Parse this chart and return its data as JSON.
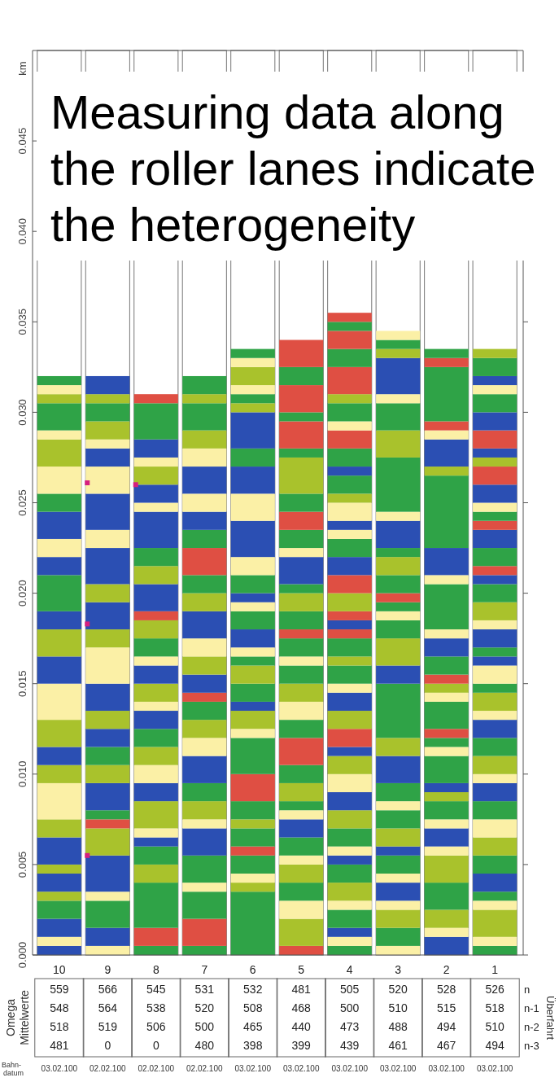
{
  "chart_data": {
    "type": "bar",
    "stacked": true,
    "title": "Measuring data along the roller lanes indicate the heterogeneity",
    "ylabel": "km",
    "categories": [
      "10",
      "9",
      "8",
      "7",
      "6",
      "5",
      "4",
      "3",
      "2",
      "1"
    ],
    "ylim": [
      0,
      0.05
    ],
    "yticks": [
      {
        "value": 0,
        "label": "0.000"
      },
      {
        "value": 0.005,
        "label": "0.005"
      },
      {
        "value": 0.01,
        "label": "0.010"
      },
      {
        "value": 0.015,
        "label": "0.015"
      },
      {
        "value": 0.02,
        "label": "0.020"
      },
      {
        "value": 0.025,
        "label": "0.025"
      },
      {
        "value": 0.03,
        "label": "0.030"
      },
      {
        "value": 0.035,
        "label": "0.035"
      },
      {
        "value": 0.04,
        "label": "0.040"
      },
      {
        "value": 0.045,
        "label": "0.045"
      }
    ],
    "marker": "square",
    "series": [
      {
        "values": [
          0.0005,
          0.0005,
          0.0005,
          0.0005,
          0.0035,
          0.0005,
          0.0005,
          0.0005,
          0.001,
          0.0005
        ],
        "colors": [
          "#2b4fb3",
          "#fbf0a6",
          "#2fa347",
          "#2fa347",
          "#2fa347",
          "#df4f43",
          "#2fa347",
          "#fbf0a6",
          "#2b4fb3",
          "#2fa347"
        ]
      },
      {
        "values": [
          0.0005,
          0.001,
          0.001,
          0.0015,
          0.0005,
          0.0015,
          0.0005,
          0.001,
          0.0005,
          0.0005
        ],
        "colors": [
          "#fbf0a6",
          "#2b4fb3",
          "#df4f43",
          "#df4f43",
          "#a9c22c",
          "#a9c22c",
          "#fbf0a6",
          "#2fa347",
          "#fbf0a6",
          "#fbf0a6"
        ]
      },
      {
        "values": [
          0.001,
          0.0015,
          0.0025,
          0.0015,
          0.0005,
          0.001,
          0.0005,
          0.001,
          0.001,
          0.0015
        ],
        "colors": [
          "#2b4fb3",
          "#2fa347",
          "#2fa347",
          "#2fa347",
          "#fbf0a6",
          "#fbf0a6",
          "#2b4fb3",
          "#a9c22c",
          "#a9c22c",
          "#a9c22c"
        ]
      },
      {
        "values": [
          0.001,
          0.0005,
          0.001,
          0.0005,
          0.001,
          0.001,
          0.001,
          0.0005,
          0.0015,
          0.0005
        ],
        "colors": [
          "#2fa347",
          "#fbf0a6",
          "#a9c22c",
          "#fbf0a6",
          "#2fa347",
          "#2fa347",
          "#2fa347",
          "#fbf0a6",
          "#2fa347",
          "#fbf0a6"
        ]
      },
      {
        "values": [
          0.0005,
          0.002,
          0.001,
          0.0015,
          0.0005,
          0.001,
          0.0005,
          0.001,
          0.0015,
          0.0005
        ],
        "colors": [
          "#a9c22c",
          "#2b4fb3",
          "#2fa347",
          "#2fa347",
          "#df4f43",
          "#a9c22c",
          "#fbf0a6",
          "#2b4fb3",
          "#a9c22c",
          "#2fa347"
        ]
      },
      {
        "values": [
          0.001,
          0.0015,
          0.0005,
          0.0015,
          0.001,
          0.0005,
          0.001,
          0.0005,
          0.0005,
          0.001
        ],
        "colors": [
          "#2b4fb3",
          "#a9c22c",
          "#2b4fb3",
          "#2b4fb3",
          "#2fa347",
          "#fbf0a6",
          "#a9c22c",
          "#fbf0a6",
          "#fbf0a6",
          "#2b4fb3"
        ]
      },
      {
        "values": [
          0.0005,
          0.0005,
          0.0005,
          0.0005,
          0.0005,
          0.001,
          0.001,
          0.001,
          0.001,
          0.001
        ],
        "colors": [
          "#a9c22c",
          "#df4f43",
          "#fbf0a6",
          "#fbf0a6",
          "#a9c22c",
          "#2fa347",
          "#2fa347",
          "#2fa347",
          "#2b4fb3",
          "#2fa347"
        ]
      },
      {
        "values": [
          0.0015,
          0.0005,
          0.0015,
          0.001,
          0.001,
          0.001,
          0.0005,
          0.0005,
          0.0005,
          0.001
        ],
        "colors": [
          "#2b4fb3",
          "#2fa347",
          "#a9c22c",
          "#a9c22c",
          "#2fa347",
          "#2b4fb3",
          "#2b4fb3",
          "#2b4fb3",
          "#fbf0a6",
          "#a9c22c"
        ]
      },
      {
        "values": [
          0.001,
          0.0015,
          0.001,
          0.001,
          0.0015,
          0.0005,
          0.0005,
          0.001,
          0.001,
          0.001
        ],
        "colors": [
          "#a9c22c",
          "#2b4fb3",
          "#2b4fb3",
          "#2fa347",
          "#df4f43",
          "#fbf0a6",
          "#fbf0a6",
          "#a9c22c",
          "#2fa347",
          "#fbf0a6"
        ]
      },
      {
        "values": [
          0.002,
          0.001,
          0.001,
          0.0015,
          0.002,
          0.0005,
          0.001,
          0.001,
          0.0005,
          0.001
        ],
        "colors": [
          "#fbf0a6",
          "#a9c22c",
          "#fbf0a6",
          "#2b4fb3",
          "#2fa347",
          "#2fa347",
          "#2fa347",
          "#2fa347",
          "#a9c22c",
          "#2fa347"
        ]
      },
      {
        "values": [
          0.001,
          0.001,
          0.001,
          0.001,
          0.0005,
          0.001,
          0.001,
          0.0005,
          0.0005,
          0.001
        ],
        "colors": [
          "#a9c22c",
          "#2fa347",
          "#a9c22c",
          "#fbf0a6",
          "#fbf0a6",
          "#a9c22c",
          "#a9c22c",
          "#fbf0a6",
          "#2b4fb3",
          "#2b4fb3"
        ]
      },
      {
        "values": [
          0.001,
          0.001,
          0.001,
          0.001,
          0.001,
          0.001,
          0.001,
          0.001,
          0.0015,
          0.0005
        ],
        "colors": [
          "#2b4fb3",
          "#2b4fb3",
          "#2fa347",
          "#a9c22c",
          "#a9c22c",
          "#2fa347",
          "#2b4fb3",
          "#2fa347",
          "#2fa347",
          "#fbf0a6"
        ]
      },
      {
        "values": [
          0.0015,
          0.001,
          0.001,
          0.001,
          0.0005,
          0.0015,
          0.001,
          0.0015,
          0.0005,
          0.001
        ],
        "colors": [
          "#a9c22c",
          "#a9c22c",
          "#2b4fb3",
          "#2fa347",
          "#2b4fb3",
          "#df4f43",
          "#fbf0a6",
          "#2b4fb3",
          "#fbf0a6",
          "#a9c22c"
        ]
      },
      {
        "values": [
          0.002,
          0.0015,
          0.0005,
          0.0005,
          0.001,
          0.001,
          0.001,
          0.001,
          0.0005,
          0.001
        ],
        "colors": [
          "#fbf0a6",
          "#2b4fb3",
          "#fbf0a6",
          "#df4f43",
          "#2fa347",
          "#2fa347",
          "#a9c22c",
          "#a9c22c",
          "#2fa347",
          "#2fa347"
        ]
      },
      {
        "values": [
          0.0015,
          0.002,
          0.001,
          0.001,
          0.001,
          0.001,
          0.0005,
          0.003,
          0.0005,
          0.001
        ],
        "colors": [
          "#2b4fb3",
          "#fbf0a6",
          "#a9c22c",
          "#2b4fb3",
          "#a9c22c",
          "#fbf0a6",
          "#2b4fb3",
          "#2fa347",
          "#df4f43",
          "#2b4fb3"
        ]
      },
      {
        "values": [
          0.0015,
          0.001,
          0.001,
          0.001,
          0.0005,
          0.001,
          0.001,
          0.001,
          0.0015,
          0.0005
        ],
        "colors": [
          "#a9c22c",
          "#a9c22c",
          "#2b4fb3",
          "#a9c22c",
          "#2fa347",
          "#a9c22c",
          "#df4f43",
          "#2b4fb3",
          "#2fa347",
          "#fbf0a6"
        ]
      },
      {
        "values": [
          0.001,
          0.0015,
          0.0005,
          0.001,
          0.0005,
          0.001,
          0.001,
          0.0015,
          0.0005,
          0.001
        ],
        "colors": [
          "#2b4fb3",
          "#2b4fb3",
          "#fbf0a6",
          "#fbf0a6",
          "#fbf0a6",
          "#2fa347",
          "#a9c22c",
          "#a9c22c",
          "#fbf0a6",
          "#a9c22c"
        ]
      },
      {
        "values": [
          0.002,
          0.001,
          0.001,
          0.0015,
          0.001,
          0.0005,
          0.001,
          0.001,
          0.0005,
          0.0005
        ],
        "colors": [
          "#2fa347",
          "#a9c22c",
          "#2fa347",
          "#2b4fb3",
          "#2b4fb3",
          "#fbf0a6",
          "#2b4fb3",
          "#2fa347",
          "#a9c22c",
          "#2fa347"
        ]
      },
      {
        "values": [
          0.001,
          0.002,
          0.001,
          0.001,
          0.001,
          0.001,
          0.0005,
          0.0005,
          0.0005,
          0.001
        ],
        "colors": [
          "#2b4fb3",
          "#2b4fb3",
          "#a9c22c",
          "#a9c22c",
          "#2fa347",
          "#2fa347",
          "#fbf0a6",
          "#fbf0a6",
          "#df4f43",
          "#fbf0a6"
        ]
      },
      {
        "values": [
          0.001,
          0.001,
          0.0005,
          0.001,
          0.0005,
          0.0005,
          0.001,
          0.0005,
          0.001,
          0.0005
        ],
        "colors": [
          "#fbf0a6",
          "#fbf0a6",
          "#df4f43",
          "#2fa347",
          "#fbf0a6",
          "#df4f43",
          "#2fa347",
          "#2fa347",
          "#2fa347",
          "#2b4fb3"
        ]
      },
      {
        "values": [
          0.0015,
          0.002,
          0.0015,
          0.0015,
          0.0005,
          0.001,
          0.0005,
          0.0005,
          0.001,
          0.0005
        ],
        "colors": [
          "#2b4fb3",
          "#2b4fb3",
          "#2b4fb3",
          "#df4f43",
          "#2b4fb3",
          "#2fa347",
          "#a9c22c",
          "#df4f43",
          "#2b4fb3",
          "#2fa347"
        ]
      },
      {
        "values": [
          0.001,
          0.0015,
          0.001,
          0.001,
          0.001,
          0.001,
          0.001,
          0.001,
          0.0005,
          0.001
        ],
        "colors": [
          "#2fa347",
          "#fbf0a6",
          "#a9c22c",
          "#2fa347",
          "#2fa347",
          "#a9c22c",
          "#2fa347",
          "#2fa347",
          "#fbf0a6",
          "#2b4fb3"
        ]
      },
      {
        "values": [
          0.0015,
          0.001,
          0.001,
          0.001,
          0.001,
          0.0005,
          0.0005,
          0.001,
          0.0025,
          0.0005
        ],
        "colors": [
          "#fbf0a6",
          "#2b4fb3",
          "#2fa347",
          "#2b4fb3",
          "#fbf0a6",
          "#2fa347",
          "#df4f43",
          "#a9c22c",
          "#2fa347",
          "#fbf0a6"
        ]
      },
      {
        "values": [
          0.0015,
          0.0005,
          0.002,
          0.001,
          0.002,
          0.0015,
          0.0005,
          0.0005,
          0.0005,
          0.001
        ],
        "colors": [
          "#a9c22c",
          "#fbf0a6",
          "#2b4fb3",
          "#fbf0a6",
          "#2b4fb3",
          "#2b4fb3",
          "#2b4fb3",
          "#2fa347",
          "#fbf0a6",
          "#a9c22c"
        ]
      },
      {
        "values": [
          0.0005,
          0.001,
          0.0005,
          0.0015,
          0.0015,
          0.0005,
          0.0005,
          0.0015,
          0.0015,
          0.001
        ],
        "colors": [
          "#fbf0a6",
          "#a9c22c",
          "#fbf0a6",
          "#2b4fb3",
          "#fbf0a6",
          "#fbf0a6",
          "#df4f43",
          "#2b4fb3",
          "#2b4fb3",
          "#2fa347"
        ]
      },
      {
        "values": [
          0.0015,
          0.001,
          0.001,
          0.001,
          0.0015,
          0.001,
          0.001,
          0.0005,
          0.004,
          0.0005
        ],
        "colors": [
          "#2fa347",
          "#2fa347",
          "#2b4fb3",
          "#fbf0a6",
          "#2b4fb3",
          "#2fa347",
          "#a9c22c",
          "#fbf0a6",
          "#2fa347",
          "#2b4fb3"
        ]
      },
      {
        "values": [
          0.0005,
          0.0005,
          0.001,
          0.001,
          0.001,
          0.001,
          0.001,
          0.003,
          0.0005,
          0.0005
        ],
        "colors": [
          "#a9c22c",
          "#a9c22c",
          "#a9c22c",
          "#a9c22c",
          "#2fa347",
          "#df4f43",
          "#df4f43",
          "#2fa347",
          "#a9c22c",
          "#df4f43"
        ]
      },
      {
        "values": [
          0.0005,
          0.001,
          0.0005,
          0.0015,
          0.002,
          0.001,
          0.001,
          0.0015,
          0.0015,
          0.001
        ],
        "colors": [
          "#fbf0a6",
          "#2b4fb3",
          "#fbf0a6",
          "#2fa347",
          "#2b4fb3",
          "#2fa347",
          "#2b4fb3",
          "#a9c22c",
          "#2b4fb3",
          "#2fa347"
        ]
      },
      {
        "values": [
          0.0005,
          null,
          0.001,
          0.0005,
          0.0005,
          0.002,
          0.001,
          0.0015,
          0.0005,
          0.001
        ],
        "colors": [
          "#2fa347",
          null,
          "#2b4fb3",
          "#a9c22c",
          "#a9c22c",
          "#a9c22c",
          "#2fa347",
          "#2fa347",
          "#fbf0a6",
          "#2b4fb3"
        ]
      },
      {
        "values": [
          null,
          null,
          0.002,
          0.001,
          0.0005,
          0.0005,
          0.0005,
          0.0005,
          0.0005,
          0.0005
        ],
        "colors": [
          null,
          null,
          "#2fa347",
          "#2fa347",
          "#2fa347",
          "#2fa347",
          "#fbf0a6",
          "#fbf0a6",
          "#df4f43",
          "#df4f43"
        ]
      },
      {
        "values": [
          null,
          null,
          0.0005,
          null,
          0.0005,
          0.0015,
          0.0005,
          0.002,
          0.003,
          0.0005
        ],
        "colors": [
          null,
          null,
          "#df4f43",
          null,
          "#fbf0a6",
          "#df4f43",
          "#2b4fb3",
          "#2b4fb3",
          "#2fa347",
          "#2fa347"
        ]
      },
      {
        "values": [
          null,
          null,
          null,
          null,
          0.001,
          0.0005,
          0.001,
          0.0005,
          0.0005,
          0.0005
        ],
        "colors": [
          null,
          null,
          null,
          null,
          "#a9c22c",
          "#2fa347",
          "#fbf0a6",
          "#a9c22c",
          "#df4f43",
          "#fbf0a6"
        ]
      },
      {
        "values": [
          null,
          null,
          null,
          null,
          0.0005,
          0.0015,
          0.0005,
          0.0005,
          0.0005,
          0.001
        ],
        "colors": [
          null,
          null,
          null,
          null,
          "#fbf0a6",
          "#df4f43",
          "#a9c22c",
          "#2fa347",
          "#2fa347",
          "#2b4fb3"
        ]
      },
      {
        "values": [
          null,
          null,
          null,
          null,
          0.0005,
          0.001,
          0.001,
          0.0005,
          null,
          0.001
        ],
        "colors": [
          null,
          null,
          null,
          null,
          "#2fa347",
          "#2fa347",
          "#2fa347",
          "#fbf0a6",
          null,
          "#df4f43"
        ]
      },
      {
        "values": [
          null,
          null,
          null,
          null,
          null,
          0.0015,
          0.0005,
          null,
          null,
          0.0005
        ],
        "colors": [
          null,
          null,
          null,
          null,
          null,
          "#df4f43",
          "#2b4fb3",
          null,
          null,
          "#a9c22c"
        ]
      },
      {
        "values": [
          null,
          null,
          null,
          null,
          null,
          null,
          0.001,
          null,
          null,
          0.0005
        ],
        "colors": [
          null,
          null,
          null,
          null,
          null,
          null,
          "#2fa347",
          null,
          null,
          "#2b4fb3"
        ]
      },
      {
        "values": [
          null,
          null,
          null,
          null,
          null,
          null,
          0.001,
          null,
          null,
          0.001
        ],
        "colors": [
          null,
          null,
          null,
          null,
          null,
          null,
          "#df4f43",
          null,
          null,
          "#df4f43"
        ]
      },
      {
        "values": [
          null,
          null,
          null,
          null,
          null,
          null,
          0.0005,
          null,
          null,
          0.001
        ],
        "colors": [
          null,
          null,
          null,
          null,
          null,
          null,
          "#fbf0a6",
          null,
          null,
          "#2b4fb3"
        ]
      },
      {
        "values": [
          null,
          null,
          null,
          null,
          null,
          null,
          0.001,
          null,
          null,
          0.001
        ],
        "colors": [
          null,
          null,
          null,
          null,
          null,
          null,
          "#2fa347",
          null,
          null,
          "#2fa347"
        ]
      },
      {
        "values": [
          null,
          null,
          null,
          null,
          null,
          null,
          0.0005,
          null,
          null,
          0.0005
        ],
        "colors": [
          null,
          null,
          null,
          null,
          null,
          null,
          "#a9c22c",
          null,
          null,
          "#fbf0a6"
        ]
      },
      {
        "values": [
          null,
          null,
          null,
          null,
          null,
          null,
          0.0015,
          null,
          null,
          0.0005
        ],
        "colors": [
          null,
          null,
          null,
          null,
          null,
          null,
          "#df4f43",
          null,
          null,
          "#2b4fb3"
        ]
      },
      {
        "values": [
          null,
          null,
          null,
          null,
          null,
          null,
          0.001,
          null,
          null,
          0.001
        ],
        "colors": [
          null,
          null,
          null,
          null,
          null,
          null,
          "#2fa347",
          null,
          null,
          "#2fa347"
        ]
      },
      {
        "values": [
          null,
          null,
          null,
          null,
          null,
          null,
          0.001,
          null,
          null,
          0.0005
        ],
        "colors": [
          null,
          null,
          null,
          null,
          null,
          null,
          "#df4f43",
          null,
          null,
          "#a9c22c"
        ]
      },
      {
        "values": [
          null,
          null,
          null,
          null,
          null,
          null,
          0.0005,
          null,
          null,
          null
        ],
        "colors": [
          null,
          null,
          null,
          null,
          null,
          null,
          "#2fa347",
          null,
          null,
          null
        ]
      },
      {
        "values": [
          null,
          null,
          null,
          null,
          null,
          null,
          0.0005,
          null,
          null,
          null
        ],
        "colors": [
          null,
          null,
          null,
          null,
          null,
          null,
          "#df4f43",
          null,
          null,
          null
        ]
      },
      {
        "type": "scatter",
        "x": [
          "9",
          "9",
          "9",
          "8"
        ],
        "values": [
          0.0261,
          0.0183,
          0.0055,
          0.026
        ],
        "color": "#d61f7f"
      }
    ],
    "annotations": [
      "Omega",
      "Mittelwerte",
      "Überfahrt",
      "Bahn-",
      "datum",
      "n",
      "n-1",
      "n-2",
      "n-3",
      "559",
      "566",
      "545",
      "531",
      "532",
      "481",
      "505",
      "520",
      "528",
      "526",
      "548",
      "564",
      "538",
      "520",
      "508",
      "468",
      "500",
      "510",
      "515",
      "518",
      "518",
      "519",
      "506",
      "500",
      "465",
      "440",
      "473",
      "488",
      "494",
      "510",
      "481",
      "0",
      "0",
      "480",
      "398",
      "399",
      "439",
      "461",
      "467",
      "494",
      "03.02.100",
      "02.02.100",
      "02.02.100",
      "02.02.100",
      "03.02.100",
      "03.02.100",
      "03.02.100",
      "03.02.100",
      "03.02.100",
      "03.02.100"
    ]
  }
}
